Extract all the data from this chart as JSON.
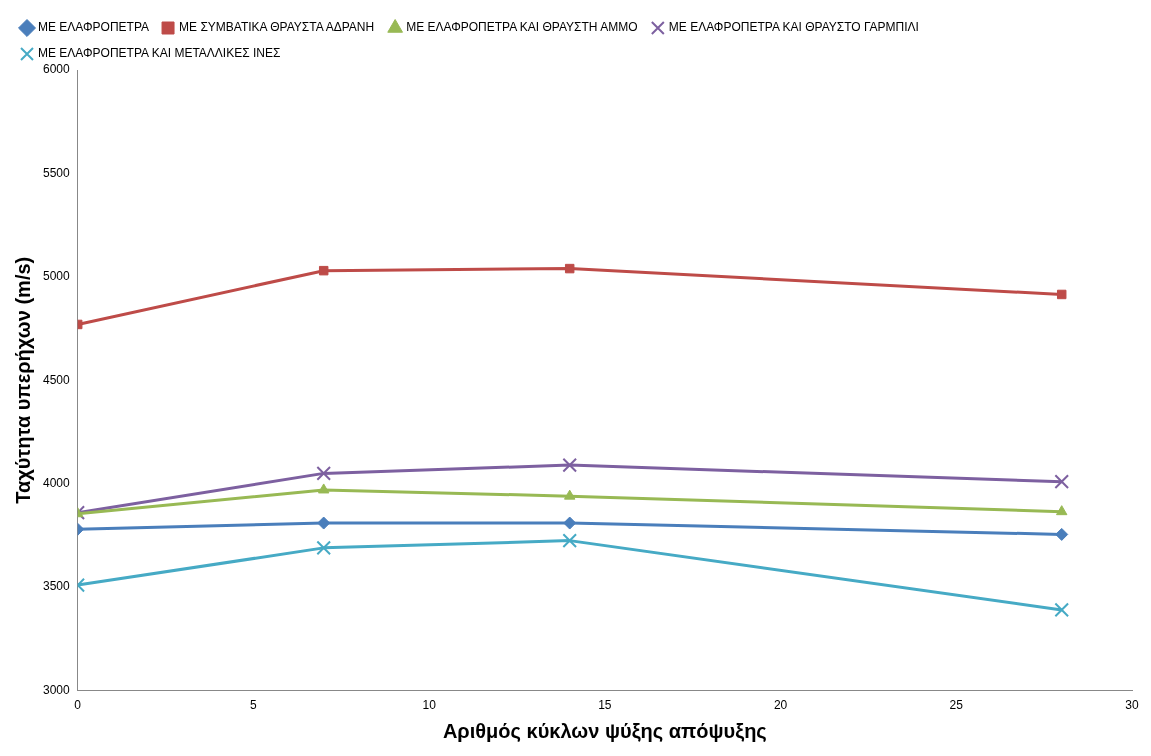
{
  "chart_data": {
    "type": "line",
    "xlabel": "Αριθμός κύκλων ψύξης απόψυξης",
    "ylabel": "Ταχύτητα υπερήχων (m/s)",
    "x": [
      0,
      7,
      14,
      28
    ],
    "xlim": [
      0,
      30
    ],
    "xticks": [
      0,
      5,
      10,
      15,
      20,
      25,
      30
    ],
    "ylim": [
      3000,
      6000
    ],
    "yticks": [
      3000,
      3500,
      4000,
      4500,
      5000,
      5500,
      6000
    ],
    "grid": false,
    "legend": "top",
    "line_style": "solid",
    "series": [
      {
        "name": "ΜΕ ΕΛΑΦΡΟΠΕΤΡΑ",
        "color": "#4a7ebb",
        "marker": "diamond",
        "values": [
          3780,
          3810,
          3810,
          3755
        ]
      },
      {
        "name": "ΜΕ ΣΥΜΒΑΤΙΚΑ ΘΡΑΥΣΤΑ ΑΔΡΑΝΗ",
        "color": "#be4b48",
        "marker": "square",
        "values": [
          4770,
          5030,
          5040,
          4915
        ]
      },
      {
        "name": "ΜΕ ΕΛΑΦΡΟΠΕΤΡΑ ΚΑΙ ΘΡΑΥΣΤΗ ΑΜΜΟ",
        "color": "#98b954",
        "marker": "triangle",
        "values": [
          3855,
          3970,
          3940,
          3865
        ]
      },
      {
        "name": "ΜΕ ΕΛΑΦΡΟΠΕΤΡΑ ΚΑΙ ΘΡΑΥΣΤΟ ΓΑΡΜΠΙΛΙ",
        "color": "#7d60a0",
        "marker": "cross",
        "values": [
          3860,
          4050,
          4090,
          4010
        ]
      },
      {
        "name": "ΜΕ ΕΛΑΦΡΟΠΕΤΡΑ ΚΑΙ ΜΕΤΑΛΛΙΚΕΣ ΙΝΕΣ",
        "color": "#46aac5",
        "marker": "cross",
        "values": [
          3510,
          3690,
          3725,
          3390
        ]
      }
    ]
  }
}
